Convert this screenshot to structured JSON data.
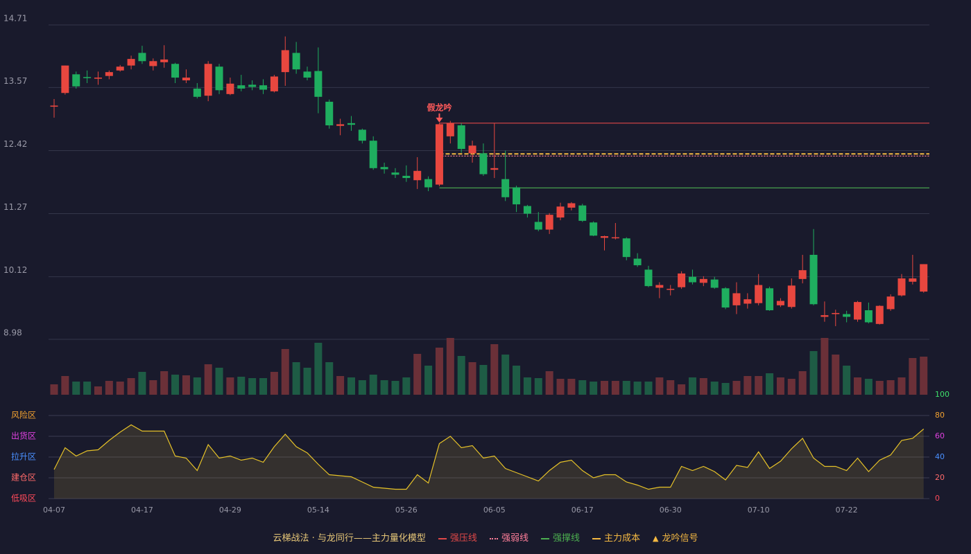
{
  "chart_data": [
    {
      "type": "candlestick",
      "categories": [
        "04-07",
        null,
        null,
        null,
        null,
        null,
        null,
        null,
        "04-17",
        null,
        null,
        null,
        null,
        null,
        null,
        null,
        "04-29",
        null,
        null,
        null,
        null,
        null,
        null,
        null,
        "05-14",
        null,
        null,
        null,
        null,
        null,
        null,
        null,
        "05-26",
        null,
        null,
        null,
        null,
        null,
        null,
        null,
        "06-05",
        null,
        null,
        null,
        null,
        null,
        null,
        null,
        "06-17",
        null,
        null,
        null,
        null,
        null,
        null,
        null,
        "06-30",
        null,
        null,
        null,
        null,
        null,
        null,
        null,
        "07-10",
        null,
        null,
        null,
        null,
        null,
        null,
        null,
        "07-22",
        null,
        null,
        null,
        null,
        null,
        null,
        null
      ],
      "open": [
        13.22,
        13.47,
        13.81,
        13.76,
        13.73,
        13.78,
        13.88,
        13.97,
        14.2,
        13.96,
        14.03,
        14.0,
        13.7,
        13.55,
        13.42,
        13.95,
        13.45,
        13.61,
        13.62,
        13.61,
        13.5,
        13.85,
        14.2,
        13.86,
        13.87,
        13.31,
        12.87,
        12.92,
        12.8,
        12.6,
        12.12,
        12.02,
        11.96,
        11.88,
        11.9,
        11.8,
        12.68,
        12.88,
        12.37,
        12.37,
        12.07,
        11.9,
        11.75,
        11.41,
        11.12,
        10.98,
        11.2,
        11.38,
        11.42,
        11.11,
        10.83,
        10.83,
        10.82,
        10.45,
        10.25,
        9.92,
        9.89,
        9.93,
        10.12,
        10.01,
        10.07,
        9.91,
        9.6,
        9.63,
        9.64,
        9.91,
        9.6,
        9.57,
        10.08,
        10.52,
        9.39,
        9.44,
        9.44,
        9.34,
        9.51,
        9.26,
        9.53,
        9.78,
        10.03,
        9.85
      ],
      "close": [
        13.24,
        13.97,
        13.59,
        13.75,
        13.75,
        13.85,
        13.95,
        14.09,
        14.05,
        14.05,
        14.08,
        13.75,
        13.75,
        13.4,
        14.0,
        13.52,
        13.64,
        13.55,
        13.58,
        13.53,
        13.77,
        14.25,
        13.9,
        13.75,
        13.4,
        12.88,
        12.9,
        12.89,
        12.6,
        12.1,
        12.08,
        11.98,
        11.92,
        12.05,
        11.75,
        12.9,
        12.92,
        12.45,
        12.51,
        11.99,
        12.1,
        11.57,
        11.44,
        11.27,
        10.98,
        11.25,
        11.4,
        11.46,
        11.14,
        10.87,
        10.86,
        10.84,
        10.48,
        10.33,
        9.95,
        9.97,
        9.9,
        10.18,
        10.02,
        10.08,
        9.92,
        9.56,
        9.82,
        9.71,
        9.97,
        9.51,
        9.68,
        9.96,
        10.24,
        9.62,
        9.42,
        9.46,
        9.39,
        9.66,
        9.29,
        9.59,
        9.76,
        10.09,
        10.09,
        10.35
      ],
      "high": [
        13.36,
        13.97,
        13.86,
        13.88,
        13.86,
        13.88,
        13.98,
        14.15,
        14.33,
        14.1,
        14.34,
        14.02,
        13.9,
        13.65,
        14.05,
        14.0,
        13.75,
        13.8,
        13.7,
        13.72,
        13.8,
        14.5,
        14.4,
        13.95,
        14.3,
        13.35,
        13.0,
        13.05,
        12.82,
        12.68,
        12.2,
        12.1,
        12.15,
        12.3,
        11.95,
        12.92,
        12.96,
        12.92,
        12.6,
        12.55,
        12.92,
        12.42,
        11.78,
        11.43,
        11.3,
        11.28,
        11.47,
        11.48,
        11.45,
        11.13,
        10.87,
        11.1,
        10.84,
        10.55,
        10.32,
        10.02,
        9.97,
        10.22,
        10.25,
        10.13,
        10.12,
        9.93,
        10.02,
        9.82,
        10.17,
        9.94,
        9.73,
        10.09,
        10.52,
        10.99,
        9.67,
        9.52,
        9.5,
        9.68,
        9.65,
        9.6,
        9.8,
        10.17,
        10.52,
        10.35
      ],
      "low": [
        13.02,
        13.44,
        13.55,
        13.65,
        13.62,
        13.72,
        13.86,
        13.9,
        14.0,
        13.88,
        13.93,
        13.65,
        13.65,
        13.37,
        13.32,
        13.45,
        13.43,
        13.5,
        13.52,
        13.45,
        13.48,
        13.6,
        13.82,
        13.7,
        13.1,
        12.82,
        12.7,
        12.78,
        12.55,
        12.07,
        12.0,
        11.92,
        11.85,
        11.72,
        11.68,
        11.77,
        12.55,
        12.38,
        12.2,
        11.96,
        11.92,
        11.5,
        11.3,
        11.2,
        10.95,
        10.9,
        11.15,
        11.33,
        11.12,
        10.86,
        10.6,
        10.8,
        10.42,
        10.3,
        9.93,
        9.73,
        9.78,
        9.9,
        9.98,
        9.95,
        9.9,
        9.53,
        9.44,
        9.54,
        9.6,
        9.5,
        9.57,
        9.54,
        10.0,
        9.6,
        9.3,
        9.22,
        9.29,
        9.3,
        9.27,
        9.25,
        9.5,
        9.76,
        9.98,
        9.83
      ],
      "up_color": "#e8473f",
      "down_color": "#1fae5f",
      "ylim": [
        8.98,
        14.71
      ],
      "yticks": [
        8.98,
        10.12,
        11.27,
        12.42,
        13.57,
        14.71
      ],
      "grid": true,
      "legend_title": "云梯战法 · 与龙同行——主力量化模型",
      "lines": [
        {
          "name": "强压线",
          "value": 12.92,
          "color": "#e04848",
          "style": "solid",
          "start_index": 35
        },
        {
          "name": "强弱线",
          "value": 12.32,
          "color": "#ff7f9a",
          "style": "dotted",
          "start_index": 35
        },
        {
          "name": "强撑线",
          "value": 11.74,
          "color": "#4caf50",
          "style": "solid",
          "start_index": 35
        },
        {
          "name": "主力成本",
          "value": 12.36,
          "color": "#f5b942",
          "style": "dashed",
          "start_index": 35
        }
      ],
      "annotation": {
        "text": "假龙吟",
        "index": 35,
        "color": "#ff5a5a",
        "legend": "龙吟信号",
        "legend_color": "#f5b942"
      }
    },
    {
      "type": "bar",
      "values": [
        15,
        27,
        19,
        19,
        12,
        20,
        19,
        24,
        33,
        21,
        34,
        29,
        28,
        25,
        44,
        39,
        25,
        26,
        24,
        24,
        33,
        66,
        47,
        39,
        75,
        47,
        27,
        25,
        21,
        29,
        21,
        20,
        25,
        59,
        42,
        68,
        82,
        56,
        47,
        43,
        73,
        58,
        42,
        25,
        24,
        34,
        23,
        23,
        21,
        19,
        20,
        20,
        20,
        19,
        19,
        25,
        21,
        15,
        25,
        24,
        19,
        17,
        20,
        27,
        27,
        31,
        25,
        23,
        34,
        63,
        82,
        58,
        42,
        25,
        23,
        20,
        21,
        25,
        53,
        55
      ],
      "up_color": "#6b3038",
      "down_color": "#1e5c45"
    },
    {
      "type": "line",
      "values": [
        28,
        49,
        41,
        46,
        47,
        56,
        64,
        71,
        65,
        65,
        65,
        41,
        39,
        27,
        52,
        39,
        41,
        37,
        39,
        35,
        50,
        62,
        50,
        44,
        33,
        23,
        22,
        21,
        16,
        11,
        10,
        9,
        9,
        23,
        15,
        53,
        60,
        49,
        51,
        39,
        41,
        29,
        25,
        21,
        17,
        27,
        35,
        37,
        27,
        20,
        23,
        23,
        16,
        13,
        9,
        11,
        11,
        31,
        27,
        31,
        26,
        18,
        32,
        30,
        45,
        29,
        36,
        48,
        58,
        39,
        31,
        31,
        27,
        39,
        26,
        37,
        42,
        56,
        58,
        67
      ],
      "color": "#e6c228",
      "ylim": [
        0,
        100
      ],
      "yticks": [
        0,
        20,
        40,
        60,
        80,
        100
      ],
      "ytick_colors": [
        "#ff4a5a",
        "#ff6a6a",
        "#4a90ff",
        "#e040e0",
        "#f0a030",
        "#3ee06a"
      ],
      "zones": [
        {
          "value": 80,
          "label": "风险区",
          "color": "#f0a030"
        },
        {
          "value": 60,
          "label": "出货区",
          "color": "#e040e0"
        },
        {
          "value": 40,
          "label": "拉升区",
          "color": "#4a90ff"
        },
        {
          "value": 20,
          "label": "建仓区",
          "color": "#ff6a6a"
        },
        {
          "value": 0,
          "label": "低吸区",
          "color": "#ff4a5a"
        }
      ]
    }
  ]
}
